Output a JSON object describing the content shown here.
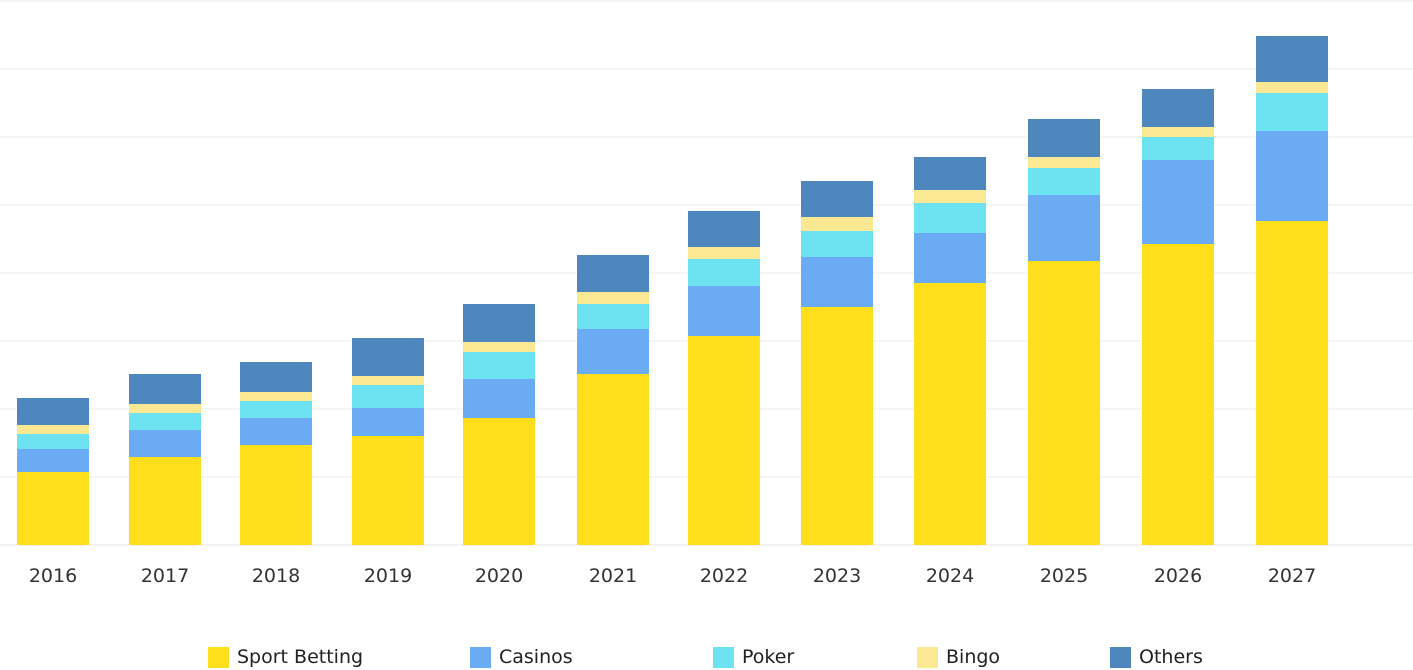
{
  "chart_data": {
    "type": "bar",
    "stacked": true,
    "categories": [
      "2016",
      "2017",
      "2018",
      "2019",
      "2020",
      "2021",
      "2022",
      "2023",
      "2024",
      "2025",
      "2026",
      "2027"
    ],
    "series": [
      {
        "name": "Sport Betting",
        "color": "#FFDF1B",
        "values": [
          73,
          88,
          100,
          109,
          127,
          171,
          209,
          238,
          262,
          284,
          301,
          324
        ]
      },
      {
        "name": "Casinos",
        "color": "#6AABF3",
        "values": [
          23,
          27,
          27,
          28,
          39,
          45,
          50,
          50,
          50,
          66,
          84,
          90
        ]
      },
      {
        "name": "Poker",
        "color": "#6DE3F2",
        "values": [
          15,
          17,
          17,
          23,
          27,
          25,
          27,
          26,
          30,
          27,
          23,
          38
        ]
      },
      {
        "name": "Bingo",
        "color": "#FBE892",
        "values": [
          9,
          9,
          9,
          9,
          10,
          12,
          12,
          14,
          13,
          11,
          10,
          11
        ]
      },
      {
        "name": "Others",
        "color": "#4E87BD",
        "values": [
          27,
          30,
          30,
          38,
          38,
          37,
          36,
          36,
          33,
          38,
          38,
          46
        ]
      }
    ],
    "ylim": [
      0,
      544
    ],
    "grid": true,
    "legend_position": "bottom",
    "title": "",
    "xlabel": "",
    "ylabel": ""
  }
}
